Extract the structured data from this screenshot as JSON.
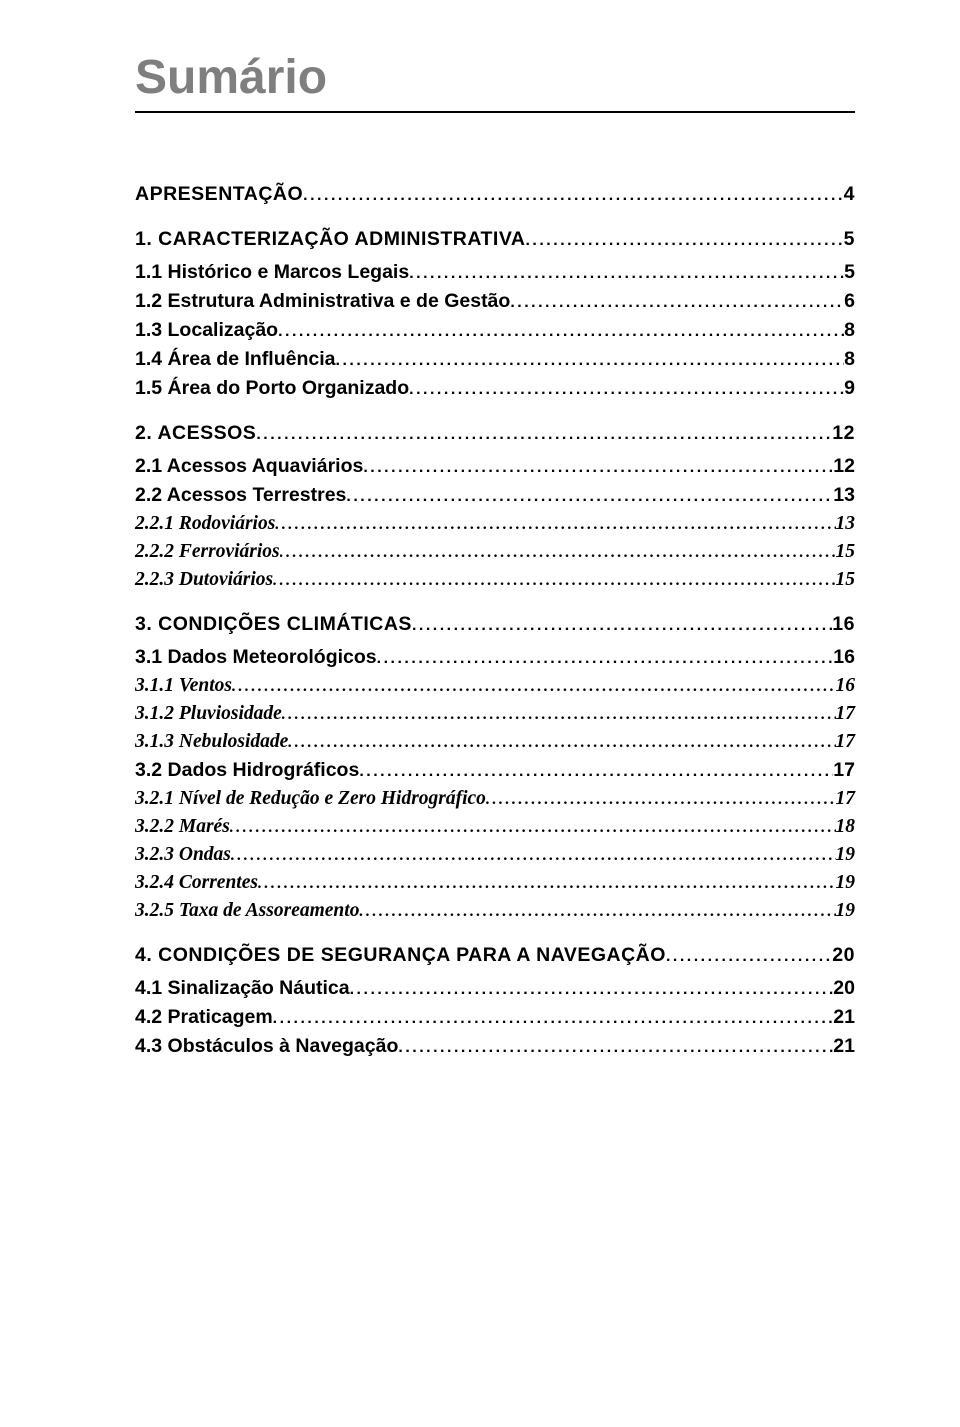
{
  "title": "Sumário",
  "colors": {
    "title": "#7f7f7f",
    "text": "#000000",
    "bg": "#ffffff",
    "rule": "#000000"
  },
  "toc": [
    {
      "level": 1,
      "label": "APRESENTAÇÃO",
      "page": "4"
    },
    {
      "level": 1,
      "label": "1. CARACTERIZAÇÃO ADMINISTRATIVA",
      "page": "5"
    },
    {
      "level": 2,
      "label": "1.1 Histórico e Marcos Legais",
      "page": "5"
    },
    {
      "level": 2,
      "label": "1.2 Estrutura Administrativa e de Gestão",
      "page": "6"
    },
    {
      "level": 2,
      "label": "1.3 Localização",
      "page": "8"
    },
    {
      "level": 2,
      "label": "1.4 Área de Influência",
      "page": "8"
    },
    {
      "level": 2,
      "label": "1.5 Área do Porto Organizado",
      "page": "9"
    },
    {
      "level": 1,
      "label": "2. ACESSOS",
      "page": "12"
    },
    {
      "level": 2,
      "label": "2.1 Acessos Aquaviários",
      "page": "12"
    },
    {
      "level": 2,
      "label": "2.2 Acessos Terrestres",
      "page": "13"
    },
    {
      "level": 3,
      "label": "2.2.1 Rodoviários",
      "page": "13"
    },
    {
      "level": 3,
      "label": "2.2.2  Ferroviários",
      "page": "15"
    },
    {
      "level": 3,
      "label": "2.2.3 Dutoviários",
      "page": "15"
    },
    {
      "level": 1,
      "label": "3. CONDIÇÕES CLIMÁTICAS",
      "page": "16"
    },
    {
      "level": 2,
      "label": "3.1 Dados Meteorológicos",
      "page": "16"
    },
    {
      "level": 3,
      "label": "3.1.1 Ventos",
      "page": "16"
    },
    {
      "level": 3,
      "label": "3.1.2 Pluviosidade",
      "page": "17"
    },
    {
      "level": 3,
      "label": "3.1.3 Nebulosidade",
      "page": "17"
    },
    {
      "level": 2,
      "label": "3.2 Dados Hidrográficos",
      "page": "17"
    },
    {
      "level": 3,
      "label": "3.2.1 Nível de Redução e Zero Hidrográfico",
      "page": "17"
    },
    {
      "level": 3,
      "label": "3.2.2 Marés",
      "page": "18"
    },
    {
      "level": 3,
      "label": "3.2.3 Ondas",
      "page": "19"
    },
    {
      "level": 3,
      "label": "3.2.4 Correntes",
      "page": "19"
    },
    {
      "level": 3,
      "label": "3.2.5 Taxa de Assoreamento",
      "page": "19"
    },
    {
      "level": 1,
      "label": "4. CONDIÇÕES DE SEGURANÇA PARA A NAVEGAÇÃO",
      "page": "20"
    },
    {
      "level": 2,
      "label": "4.1 Sinalização Náutica",
      "page": "20"
    },
    {
      "level": 2,
      "label": "4.2 Praticagem",
      "page": "21"
    },
    {
      "level": 2,
      "label": "4.3 Obstáculos à Navegação",
      "page": "21"
    }
  ]
}
